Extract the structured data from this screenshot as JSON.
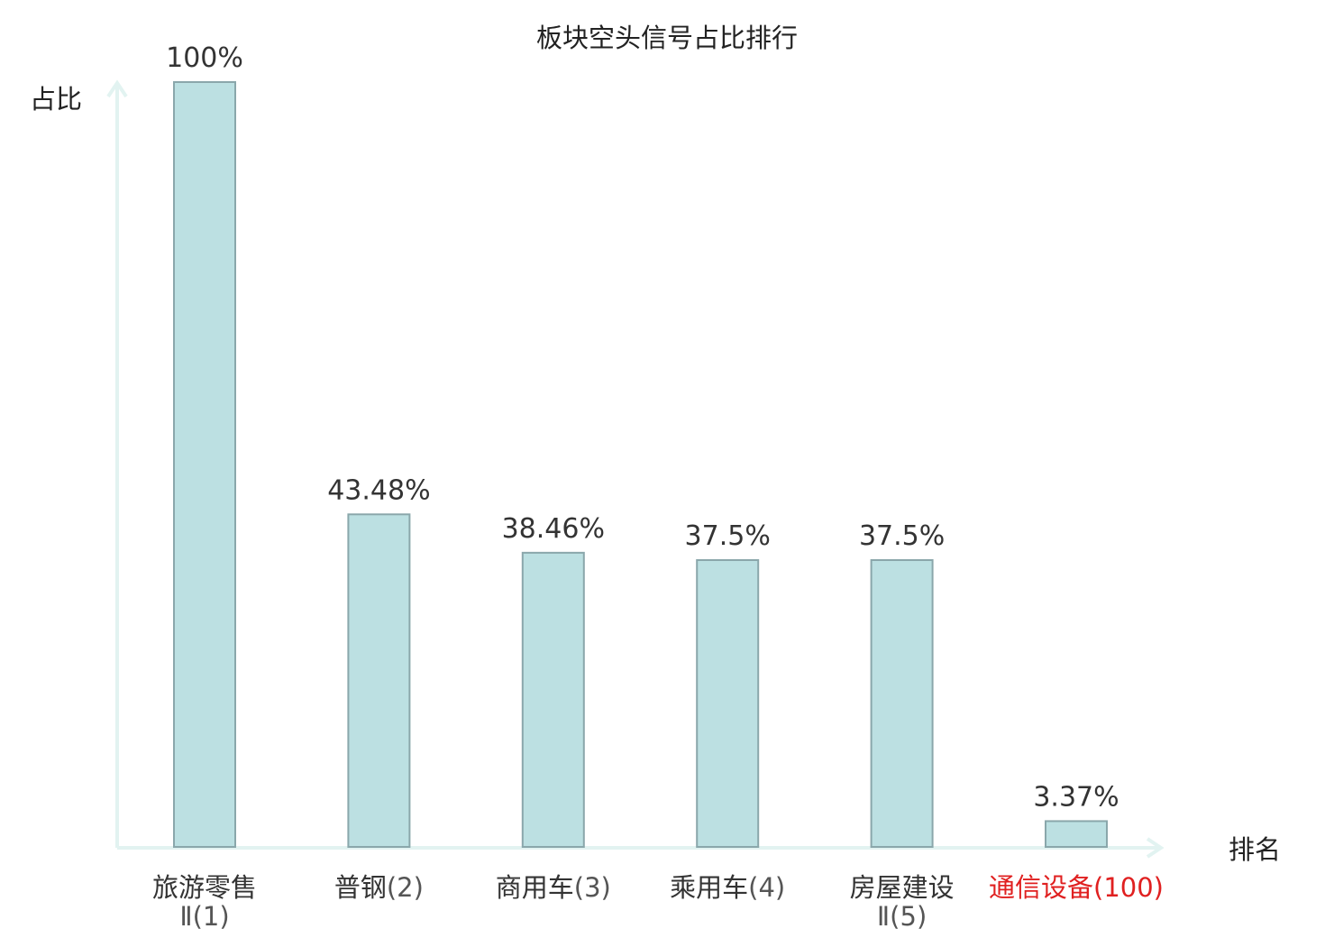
{
  "chart_data": {
    "type": "bar",
    "title": "板块空头信号占比排行",
    "xlabel": "排名",
    "ylabel": "占比",
    "ylim": [
      0,
      100
    ],
    "grid": false,
    "categories": [
      {
        "name": "旅游零售Ⅱ",
        "rank": "(1)",
        "highlight": false
      },
      {
        "name": "普钢",
        "rank": "(2)",
        "highlight": false
      },
      {
        "name": "商用车",
        "rank": "(3)",
        "highlight": false
      },
      {
        "name": "乘用车",
        "rank": "(4)",
        "highlight": false
      },
      {
        "name": "房屋建设Ⅱ",
        "rank": "(5)",
        "highlight": false
      },
      {
        "name": "通信设备",
        "rank": "(100)",
        "highlight": true
      }
    ],
    "values": [
      100,
      43.48,
      38.46,
      37.5,
      37.5,
      3.37
    ],
    "value_labels": [
      "100%",
      "43.48%",
      "38.46%",
      "37.5%",
      "37.5%",
      "3.37%"
    ]
  },
  "colors": {
    "bar_fill": "#bce0e2",
    "bar_stroke": "#8aa7ab",
    "axis": "#e2f3f1",
    "text": "#333333",
    "rank_text": "#555555",
    "highlight": "#e02020"
  }
}
